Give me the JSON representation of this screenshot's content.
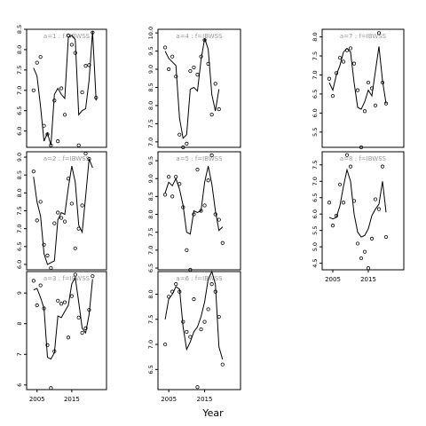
{
  "figure": {
    "xlabel": "Year",
    "colors": {
      "axis": "#000000",
      "line": "#000000",
      "panel_label": "#9a9a9a"
    }
  },
  "chart_data": [
    {
      "type": "line",
      "label": "a=1 : f=IBWSS",
      "xlim": [
        2002,
        2025
      ],
      "ylim": [
        5.6,
        8.5
      ],
      "yticks": [
        "6.0",
        "6.5",
        "7.0",
        "7.5",
        "8.0",
        "8.5"
      ],
      "ytick_values": [
        6.0,
        6.5,
        7.0,
        7.5,
        8.0,
        8.5
      ],
      "xticks": [],
      "xtick_values": [],
      "points": [
        [
          2004,
          7.0
        ],
        [
          2005,
          7.68
        ],
        [
          2006,
          7.82
        ],
        [
          2007,
          6.13
        ],
        [
          2008,
          5.92
        ],
        [
          2009,
          5.65
        ],
        [
          2010,
          6.75
        ],
        [
          2011,
          5.75
        ],
        [
          2012,
          7.05
        ],
        [
          2013,
          6.4
        ],
        [
          2014,
          8.35
        ],
        [
          2015,
          8.12
        ],
        [
          2016,
          7.92
        ],
        [
          2017,
          5.65
        ],
        [
          2018,
          6.95
        ],
        [
          2019,
          7.6
        ],
        [
          2020,
          7.62
        ],
        [
          2021,
          8.42
        ],
        [
          2022,
          6.82
        ]
      ],
      "line": [
        [
          2004,
          7.55
        ],
        [
          2005,
          7.35
        ],
        [
          2006,
          6.6
        ],
        [
          2007,
          5.75
        ],
        [
          2008,
          5.95
        ],
        [
          2009,
          5.65
        ],
        [
          2010,
          6.9
        ],
        [
          2011,
          7.05
        ],
        [
          2012,
          6.9
        ],
        [
          2013,
          6.8
        ],
        [
          2014,
          8.3
        ],
        [
          2015,
          8.35
        ],
        [
          2016,
          8.25
        ],
        [
          2017,
          6.4
        ],
        [
          2018,
          6.5
        ],
        [
          2019,
          6.55
        ],
        [
          2020,
          7.25
        ],
        [
          2021,
          8.45
        ],
        [
          2022,
          6.75
        ]
      ]
    },
    {
      "type": "line",
      "label": "a=2 : f=IBWSS",
      "xlim": [
        2002,
        2025
      ],
      "ylim": [
        5.85,
        9.15
      ],
      "yticks": [
        "6.0",
        "6.5",
        "7.0",
        "7.5",
        "8.0",
        "8.5",
        "9.0"
      ],
      "ytick_values": [
        6.0,
        6.5,
        7.0,
        7.5,
        8.0,
        8.5,
        9.0
      ],
      "xticks": [],
      "xtick_values": [],
      "points": [
        [
          2004,
          8.6
        ],
        [
          2005,
          7.23
        ],
        [
          2006,
          7.75
        ],
        [
          2007,
          6.55
        ],
        [
          2008,
          6.25
        ],
        [
          2009,
          5.9
        ],
        [
          2010,
          7.15
        ],
        [
          2011,
          7.45
        ],
        [
          2012,
          7.3
        ],
        [
          2013,
          7.2
        ],
        [
          2014,
          8.4
        ],
        [
          2015,
          7.7
        ],
        [
          2016,
          6.45
        ],
        [
          2017,
          7.0
        ],
        [
          2018,
          7.65
        ],
        [
          2019,
          9.1
        ],
        [
          2020,
          8.95
        ]
      ],
      "line": [
        [
          2004,
          8.45
        ],
        [
          2005,
          7.75
        ],
        [
          2006,
          7.35
        ],
        [
          2007,
          6.3
        ],
        [
          2008,
          6.0
        ],
        [
          2009,
          6.05
        ],
        [
          2010,
          6.1
        ],
        [
          2011,
          7.25
        ],
        [
          2012,
          7.45
        ],
        [
          2013,
          7.4
        ],
        [
          2014,
          8.15
        ],
        [
          2015,
          8.75
        ],
        [
          2016,
          8.3
        ],
        [
          2017,
          7.1
        ],
        [
          2018,
          6.9
        ],
        [
          2019,
          7.9
        ],
        [
          2020,
          8.95
        ],
        [
          2021,
          8.7
        ]
      ]
    },
    {
      "type": "line",
      "label": "a=3 : f=IBWSS",
      "xlim": [
        2002,
        2025
      ],
      "ylim": [
        5.85,
        9.7
      ],
      "yticks": [
        "6",
        "7",
        "8",
        "9"
      ],
      "ytick_values": [
        6,
        7,
        8,
        9
      ],
      "xticks": [
        "2005",
        "2015"
      ],
      "xtick_values": [
        2005,
        2015
      ],
      "points": [
        [
          2004,
          9.4
        ],
        [
          2005,
          8.6
        ],
        [
          2006,
          9.25
        ],
        [
          2007,
          8.5
        ],
        [
          2008,
          7.3
        ],
        [
          2009,
          5.9
        ],
        [
          2010,
          7.1
        ],
        [
          2011,
          8.75
        ],
        [
          2012,
          8.65
        ],
        [
          2013,
          8.7
        ],
        [
          2014,
          7.55
        ],
        [
          2015,
          8.9
        ],
        [
          2016,
          9.6
        ],
        [
          2017,
          8.2
        ],
        [
          2018,
          7.7
        ],
        [
          2019,
          7.85
        ],
        [
          2020,
          8.45
        ],
        [
          2021,
          9.55
        ]
      ],
      "line": [
        [
          2004,
          9.1
        ],
        [
          2005,
          9.15
        ],
        [
          2006,
          8.85
        ],
        [
          2007,
          8.5
        ],
        [
          2008,
          6.9
        ],
        [
          2009,
          6.85
        ],
        [
          2010,
          7.05
        ],
        [
          2011,
          8.25
        ],
        [
          2012,
          8.2
        ],
        [
          2013,
          8.4
        ],
        [
          2014,
          8.6
        ],
        [
          2015,
          9.3
        ],
        [
          2016,
          9.5
        ],
        [
          2017,
          8.7
        ],
        [
          2018,
          7.85
        ],
        [
          2019,
          7.7
        ],
        [
          2020,
          8.3
        ],
        [
          2021,
          9.45
        ]
      ]
    },
    {
      "type": "line",
      "label": "a=4 : f=IBWSS",
      "xlim": [
        2002,
        2025
      ],
      "ylim": [
        6.85,
        10.1
      ],
      "yticks": [
        "7.0",
        "7.5",
        "8.0",
        "8.5",
        "9.0",
        "9.5",
        "10.0"
      ],
      "ytick_values": [
        7.0,
        7.5,
        8.0,
        8.5,
        9.0,
        9.5,
        10.0
      ],
      "xticks": [],
      "xtick_values": [],
      "points": [
        [
          2004,
          9.6
        ],
        [
          2005,
          9.0
        ],
        [
          2006,
          9.35
        ],
        [
          2007,
          8.8
        ],
        [
          2008,
          7.2
        ],
        [
          2009,
          6.85
        ],
        [
          2010,
          6.95
        ],
        [
          2011,
          8.95
        ],
        [
          2012,
          9.05
        ],
        [
          2013,
          8.85
        ],
        [
          2014,
          9.35
        ],
        [
          2015,
          9.8
        ],
        [
          2016,
          9.15
        ],
        [
          2017,
          7.75
        ],
        [
          2018,
          8.6
        ],
        [
          2019,
          7.9
        ]
      ],
      "line": [
        [
          2004,
          9.5
        ],
        [
          2005,
          9.3
        ],
        [
          2006,
          9.2
        ],
        [
          2007,
          9.1
        ],
        [
          2008,
          7.65
        ],
        [
          2009,
          7.1
        ],
        [
          2010,
          7.2
        ],
        [
          2011,
          8.45
        ],
        [
          2012,
          8.5
        ],
        [
          2013,
          8.4
        ],
        [
          2014,
          9.25
        ],
        [
          2015,
          9.85
        ],
        [
          2016,
          9.55
        ],
        [
          2017,
          8.3
        ],
        [
          2018,
          7.85
        ],
        [
          2019,
          8.45
        ]
      ]
    },
    {
      "type": "line",
      "label": "a=5 : f=IBWSS",
      "xlim": [
        2002,
        2025
      ],
      "ylim": [
        6.45,
        9.75
      ],
      "yticks": [
        "6.5",
        "7.0",
        "7.5",
        "8.0",
        "8.5",
        "9.0",
        "9.5"
      ],
      "ytick_values": [
        6.5,
        7.0,
        7.5,
        8.0,
        8.5,
        9.0,
        9.5
      ],
      "xticks": [],
      "xtick_values": [],
      "points": [
        [
          2004,
          8.55
        ],
        [
          2005,
          9.05
        ],
        [
          2006,
          8.5
        ],
        [
          2007,
          9.05
        ],
        [
          2008,
          8.85
        ],
        [
          2009,
          8.2
        ],
        [
          2010,
          7.0
        ],
        [
          2011,
          6.45
        ],
        [
          2012,
          8.0
        ],
        [
          2013,
          9.25
        ],
        [
          2014,
          8.1
        ],
        [
          2015,
          8.25
        ],
        [
          2016,
          8.95
        ],
        [
          2017,
          9.65
        ],
        [
          2018,
          8.0
        ],
        [
          2019,
          7.85
        ],
        [
          2020,
          7.2
        ]
      ],
      "line": [
        [
          2004,
          8.6
        ],
        [
          2005,
          8.9
        ],
        [
          2006,
          8.8
        ],
        [
          2007,
          9.0
        ],
        [
          2008,
          8.7
        ],
        [
          2009,
          8.25
        ],
        [
          2010,
          7.5
        ],
        [
          2011,
          7.45
        ],
        [
          2012,
          8.1
        ],
        [
          2013,
          8.05
        ],
        [
          2014,
          8.1
        ],
        [
          2015,
          8.9
        ],
        [
          2016,
          9.35
        ],
        [
          2017,
          8.85
        ],
        [
          2018,
          8.1
        ],
        [
          2019,
          7.55
        ],
        [
          2020,
          7.65
        ]
      ]
    },
    {
      "type": "line",
      "label": "a=6 : f=IBWSS",
      "xlim": [
        2002,
        2025
      ],
      "ylim": [
        6.1,
        8.45
      ],
      "yticks": [
        "6.5",
        "7.0",
        "7.5",
        "8.0"
      ],
      "ytick_values": [
        6.5,
        7.0,
        7.5,
        8.0
      ],
      "xticks": [
        "2005",
        "2015"
      ],
      "xtick_values": [
        2005,
        2015
      ],
      "points": [
        [
          2004,
          7.0
        ],
        [
          2005,
          7.95
        ],
        [
          2006,
          8.05
        ],
        [
          2007,
          8.2
        ],
        [
          2008,
          8.05
        ],
        [
          2009,
          7.45
        ],
        [
          2010,
          7.25
        ],
        [
          2011,
          7.15
        ],
        [
          2012,
          7.9
        ],
        [
          2013,
          6.15
        ],
        [
          2014,
          7.3
        ],
        [
          2015,
          7.45
        ],
        [
          2016,
          7.7
        ],
        [
          2017,
          8.2
        ],
        [
          2018,
          8.05
        ],
        [
          2019,
          7.55
        ],
        [
          2020,
          6.6
        ]
      ],
      "line": [
        [
          2004,
          7.5
        ],
        [
          2005,
          7.9
        ],
        [
          2006,
          8.0
        ],
        [
          2007,
          8.15
        ],
        [
          2008,
          8.1
        ],
        [
          2009,
          7.35
        ],
        [
          2010,
          6.9
        ],
        [
          2011,
          7.05
        ],
        [
          2012,
          7.25
        ],
        [
          2013,
          7.35
        ],
        [
          2014,
          7.55
        ],
        [
          2015,
          7.85
        ],
        [
          2016,
          8.3
        ],
        [
          2017,
          8.45
        ],
        [
          2018,
          8.2
        ],
        [
          2019,
          6.95
        ],
        [
          2020,
          6.7
        ]
      ]
    },
    {
      "type": "line",
      "label": "a=7 : f=IBWSS",
      "xlim": [
        2002,
        2025
      ],
      "ylim": [
        5.1,
        8.2
      ],
      "yticks": [
        "5.5",
        "6.0",
        "6.5",
        "7.0",
        "7.5",
        "8.0"
      ],
      "ytick_values": [
        5.5,
        6.0,
        6.5,
        7.0,
        7.5,
        8.0
      ],
      "xticks": [],
      "xtick_values": [],
      "points": [
        [
          2004,
          6.9
        ],
        [
          2005,
          6.45
        ],
        [
          2006,
          7.05
        ],
        [
          2007,
          7.45
        ],
        [
          2008,
          7.35
        ],
        [
          2009,
          7.65
        ],
        [
          2010,
          7.7
        ],
        [
          2011,
          7.3
        ],
        [
          2012,
          6.6
        ],
        [
          2013,
          5.1
        ],
        [
          2014,
          6.05
        ],
        [
          2015,
          6.8
        ],
        [
          2016,
          6.65
        ],
        [
          2017,
          6.2
        ],
        [
          2018,
          8.1
        ],
        [
          2019,
          6.8
        ],
        [
          2020,
          6.25
        ]
      ],
      "line": [
        [
          2004,
          6.8
        ],
        [
          2005,
          6.6
        ],
        [
          2006,
          7.0
        ],
        [
          2007,
          7.25
        ],
        [
          2008,
          7.6
        ],
        [
          2009,
          7.7
        ],
        [
          2010,
          7.6
        ],
        [
          2011,
          6.8
        ],
        [
          2012,
          6.15
        ],
        [
          2013,
          6.1
        ],
        [
          2014,
          6.3
        ],
        [
          2015,
          6.6
        ],
        [
          2016,
          6.45
        ],
        [
          2017,
          7.1
        ],
        [
          2018,
          7.75
        ],
        [
          2019,
          6.85
        ],
        [
          2020,
          6.25
        ]
      ]
    },
    {
      "type": "line",
      "label": "a=8 : f=IBWSS",
      "xlim": [
        2002,
        2025
      ],
      "ylim": [
        4.3,
        7.9
      ],
      "yticks": [
        "4.5",
        "5.0",
        "5.5",
        "6.0",
        "6.5",
        "7.0",
        "7.5"
      ],
      "ytick_values": [
        4.5,
        5.0,
        5.5,
        6.0,
        6.5,
        7.0,
        7.5
      ],
      "xticks": [
        "2005",
        "2015"
      ],
      "xtick_values": [
        2005,
        2015
      ],
      "points": [
        [
          2004,
          6.35
        ],
        [
          2005,
          5.65
        ],
        [
          2006,
          5.95
        ],
        [
          2007,
          6.9
        ],
        [
          2008,
          6.35
        ],
        [
          2009,
          7.8
        ],
        [
          2010,
          7.45
        ],
        [
          2011,
          6.4
        ],
        [
          2012,
          5.1
        ],
        [
          2013,
          4.65
        ],
        [
          2014,
          4.85
        ],
        [
          2015,
          4.35
        ],
        [
          2016,
          5.25
        ],
        [
          2017,
          6.45
        ],
        [
          2018,
          6.15
        ],
        [
          2019,
          7.45
        ],
        [
          2020,
          5.3
        ]
      ],
      "line": [
        [
          2004,
          5.9
        ],
        [
          2005,
          5.85
        ],
        [
          2006,
          5.9
        ],
        [
          2007,
          6.25
        ],
        [
          2008,
          6.85
        ],
        [
          2009,
          7.35
        ],
        [
          2010,
          7.0
        ],
        [
          2011,
          6.0
        ],
        [
          2012,
          5.45
        ],
        [
          2013,
          5.3
        ],
        [
          2014,
          5.35
        ],
        [
          2015,
          5.55
        ],
        [
          2016,
          5.95
        ],
        [
          2017,
          6.15
        ],
        [
          2018,
          6.3
        ],
        [
          2019,
          7.0
        ],
        [
          2020,
          6.05
        ]
      ]
    }
  ]
}
